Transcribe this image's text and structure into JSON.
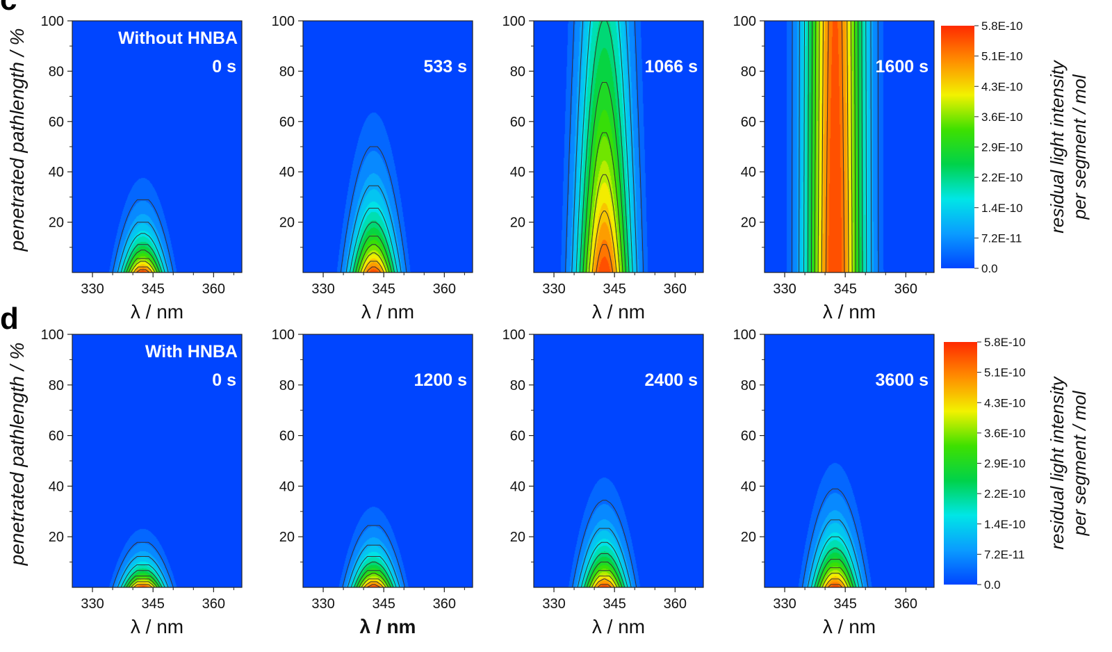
{
  "panel_letters": [
    "c",
    "d"
  ],
  "colors": {
    "colormap": [
      "#0045ff",
      "#0a9cff",
      "#00e6e6",
      "#00d24a",
      "#3ee000",
      "#f2f200",
      "#ff8c00",
      "#ff2a00"
    ],
    "contour_line": "#333333"
  },
  "colorbar": {
    "tick_labels": [
      "5.8E-10",
      "5.1E-10",
      "4.3E-10",
      "3.6E-10",
      "2.9E-10",
      "2.2E-10",
      "1.4E-10",
      "7.2E-11",
      "0.0"
    ],
    "title_line1": "residual light intensity",
    "title_line2": "per segment / mol"
  },
  "chart_data": [
    {
      "type": "heatmap",
      "row": "c",
      "annotation_top": "Without HNBA",
      "annotation": "0 s",
      "peak_x": 342.5,
      "peak_intensity": 5.8e-10,
      "decay_length": 13,
      "sigma_x": 3.5,
      "xlabel": "λ / nm",
      "ylabel": "penetrated pathlength / %",
      "xlim": [
        325,
        367
      ],
      "ylim": [
        0,
        100
      ],
      "xticks": [
        330,
        345,
        360
      ],
      "yticks": [
        20,
        40,
        60,
        80,
        100
      ]
    },
    {
      "type": "heatmap",
      "row": "c",
      "annotation": "533 s",
      "peak_x": 342.5,
      "peak_intensity": 5.8e-10,
      "decay_length": 22,
      "sigma_x": 3.8,
      "xlabel": "λ / nm",
      "ylabel": "",
      "xlim": [
        325,
        367
      ],
      "ylim": [
        0,
        100
      ],
      "xticks": [
        330,
        345,
        360
      ],
      "yticks": [
        20,
        40,
        60,
        80,
        100
      ]
    },
    {
      "type": "heatmap",
      "row": "c",
      "annotation": "1066 s",
      "peak_x": 342.5,
      "peak_intensity": 5.8e-10,
      "decay_length": 110,
      "sigma_x": 4.5,
      "xlabel": "λ / nm",
      "ylabel": "",
      "xlim": [
        325,
        367
      ],
      "ylim": [
        0,
        100
      ],
      "xticks": [
        330,
        345,
        360
      ],
      "yticks": [
        20,
        40,
        60,
        80,
        100
      ]
    },
    {
      "type": "heatmap",
      "row": "c",
      "annotation": "1600 s",
      "peak_x": 342.5,
      "peak_intensity": 5.8e-10,
      "decay_length": 2000,
      "sigma_x": 5.0,
      "xlabel": "λ / nm",
      "ylabel": "",
      "xlim": [
        325,
        367
      ],
      "ylim": [
        0,
        100
      ],
      "xticks": [
        330,
        345,
        360
      ],
      "yticks": [
        20,
        40,
        60,
        80,
        100
      ]
    },
    {
      "type": "heatmap",
      "row": "d",
      "annotation_top": "With HNBA",
      "annotation": "0 s",
      "peak_x": 342.5,
      "peak_intensity": 5.8e-10,
      "decay_length": 8,
      "sigma_x": 3.5,
      "xlabel": "λ / nm",
      "ylabel": "penetrated pathlength / %",
      "xlim": [
        325,
        367
      ],
      "ylim": [
        0,
        100
      ],
      "xticks": [
        330,
        345,
        360
      ],
      "yticks": [
        20,
        40,
        60,
        80,
        100
      ]
    },
    {
      "type": "heatmap",
      "row": "d",
      "annotation": "1200 s",
      "peak_x": 342.5,
      "peak_intensity": 5.8e-10,
      "decay_length": 11,
      "sigma_x": 3.6,
      "xlabel": "λ / nm",
      "ylabel": "",
      "xlim": [
        325,
        367
      ],
      "ylim": [
        0,
        100
      ],
      "xticks": [
        330,
        345,
        360
      ],
      "yticks": [
        20,
        40,
        60,
        80,
        100
      ]
    },
    {
      "type": "heatmap",
      "row": "d",
      "annotation": "2400 s",
      "peak_x": 342.5,
      "peak_intensity": 5.8e-10,
      "decay_length": 15,
      "sigma_x": 3.7,
      "xlabel": "λ / nm",
      "ylabel": "",
      "xlim": [
        325,
        367
      ],
      "ylim": [
        0,
        100
      ],
      "xticks": [
        330,
        345,
        360
      ],
      "yticks": [
        20,
        40,
        60,
        80,
        100
      ]
    },
    {
      "type": "heatmap",
      "row": "d",
      "annotation": "3600 s",
      "peak_x": 342.5,
      "peak_intensity": 5.8e-10,
      "decay_length": 17,
      "sigma_x": 3.8,
      "xlabel": "λ / nm",
      "ylabel": "",
      "xlim": [
        325,
        367
      ],
      "ylim": [
        0,
        100
      ],
      "xticks": [
        330,
        345,
        360
      ],
      "yticks": [
        20,
        40,
        60,
        80,
        100
      ]
    }
  ]
}
